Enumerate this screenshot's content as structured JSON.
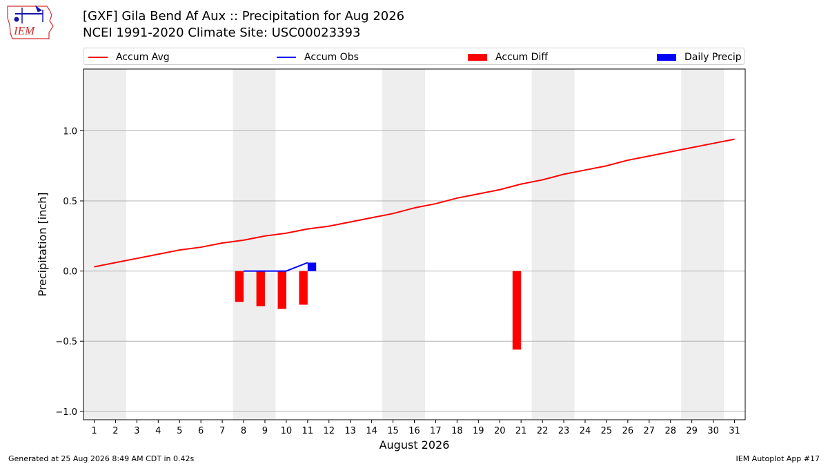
{
  "logo": {
    "text": "IEM",
    "outline_color": "#d03030",
    "text_color": "#d03030",
    "instrument_color": "#1515a8"
  },
  "title": {
    "line1": "[GXF] Gila Bend Af Aux :: Precipitation for Aug 2026",
    "line2": "NCEI 1991-2020 Climate Site: USC00023393"
  },
  "legend": {
    "items": [
      {
        "label": "Accum Avg",
        "kind": "line",
        "color": "#ff0000"
      },
      {
        "label": "Accum Obs",
        "kind": "line",
        "color": "#0000ff"
      },
      {
        "label": "Accum Diff",
        "kind": "rect",
        "color": "#ff0000"
      },
      {
        "label": "Daily Precip",
        "kind": "rect",
        "color": "#0000ff"
      }
    ]
  },
  "chart_data": {
    "type": "line",
    "xlabel": "August 2026",
    "ylabel": "Precipitation [inch]",
    "xlim": [
      0.5,
      31.5
    ],
    "ylim": [
      -1.06,
      1.44
    ],
    "x_ticks": [
      1,
      2,
      3,
      4,
      5,
      6,
      7,
      8,
      9,
      10,
      11,
      12,
      13,
      14,
      15,
      16,
      17,
      18,
      19,
      20,
      21,
      22,
      23,
      24,
      25,
      26,
      27,
      28,
      29,
      30,
      31
    ],
    "y_ticks": [
      -1.0,
      -0.5,
      0.0,
      0.5,
      1.0
    ],
    "y_tick_labels": [
      "−1.0",
      "−0.5",
      "0.0",
      "0.5",
      "1.0"
    ],
    "grid": "horizontal",
    "weekend_shading": [
      [
        1,
        2
      ],
      [
        8,
        9
      ],
      [
        15,
        16
      ],
      [
        22,
        23
      ],
      [
        29,
        30
      ]
    ],
    "shade_color": "#eeeeee",
    "series": [
      {
        "name": "Accum Avg",
        "type": "line",
        "color": "#ff0000",
        "x": [
          1,
          2,
          3,
          4,
          5,
          6,
          7,
          8,
          9,
          10,
          11,
          12,
          13,
          14,
          15,
          16,
          17,
          18,
          19,
          20,
          21,
          22,
          23,
          24,
          25,
          26,
          27,
          28,
          29,
          30,
          31
        ],
        "y": [
          0.03,
          0.06,
          0.09,
          0.12,
          0.15,
          0.17,
          0.2,
          0.22,
          0.25,
          0.27,
          0.3,
          0.32,
          0.35,
          0.38,
          0.41,
          0.45,
          0.48,
          0.52,
          0.55,
          0.58,
          0.62,
          0.65,
          0.69,
          0.72,
          0.75,
          0.79,
          0.82,
          0.85,
          0.88,
          0.91,
          0.94
        ]
      },
      {
        "name": "Accum Obs",
        "type": "line",
        "color": "#0000ff",
        "x": [
          8,
          9,
          10,
          11
        ],
        "y": [
          0.0,
          0.0,
          0.0,
          0.06
        ]
      },
      {
        "name": "Accum Diff",
        "type": "bar",
        "color": "#ff0000",
        "x": [
          8,
          9,
          10,
          11,
          21
        ],
        "y": [
          -0.22,
          -0.25,
          -0.27,
          -0.24,
          -0.56
        ]
      },
      {
        "name": "Daily Precip",
        "type": "bar",
        "color": "#0000ff",
        "x": [
          11
        ],
        "y": [
          0.06
        ]
      }
    ]
  },
  "footer": {
    "left": "Generated at 25 Aug 2026 8:49 AM CDT in 0.42s",
    "right": "IEM Autoplot App #17"
  }
}
